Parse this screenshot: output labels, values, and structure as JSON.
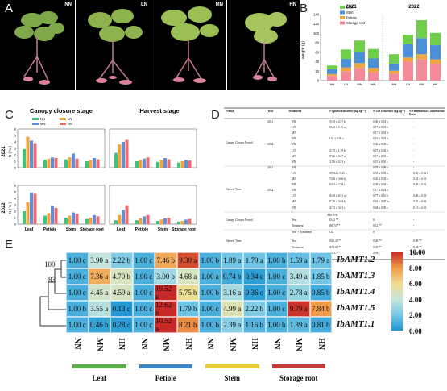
{
  "panels": {
    "a": "A",
    "b": "B",
    "c": "C",
    "d": "D",
    "e": "E"
  },
  "photos": [
    "NN",
    "LN",
    "MN",
    "HN"
  ],
  "colors": {
    "leaf": "#6fcf4a",
    "stem": "#4b8fd8",
    "petiole": "#f0a640",
    "root": "#f38a9a",
    "nn": "#43c27a",
    "ln": "#f6a23a",
    "mn": "#5c8fe0",
    "hn": "#f06a6a"
  },
  "panelB": {
    "ylabel": "weight (g)",
    "years": [
      "2021",
      "2022"
    ],
    "legend": [
      "Leaf",
      "Stem",
      "Petiole",
      "Storage root"
    ],
    "yticks": [
      "0",
      "20",
      "40",
      "60",
      "80",
      "100",
      "120",
      "140"
    ],
    "xticks": [
      "NN",
      "LN",
      "MN",
      "HN"
    ]
  },
  "chart_data": {
    "type": "bar",
    "title": "",
    "xlabel": "",
    "ylabel": "weight (g)",
    "ylim": [
      0,
      140
    ],
    "categories": [
      "2021 NN",
      "2021 LN",
      "2021 MN",
      "2021 HN",
      "2022 NN",
      "2022 LN",
      "2022 MN",
      "2022 HN"
    ],
    "series": [
      {
        "name": "Storage root",
        "values": [
          10,
          20,
          27,
          18,
          15,
          40,
          45,
          35
        ]
      },
      {
        "name": "Petiole",
        "values": [
          4,
          8,
          10,
          9,
          6,
          9,
          11,
          10
        ]
      },
      {
        "name": "Stem",
        "values": [
          10,
          18,
          24,
          20,
          15,
          28,
          34,
          30
        ]
      },
      {
        "name": "Leaf",
        "values": [
          8,
          20,
          24,
          20,
          20,
          20,
          38,
          26
        ]
      }
    ]
  },
  "panelC": {
    "titles": [
      "Canopy closure stage",
      "Harvest stage"
    ],
    "legend": [
      "NN",
      "LN",
      "MN",
      "HN"
    ],
    "rows": [
      "2021",
      "2022"
    ],
    "ylabel": "N ( % )",
    "yticks": [
      "0",
      "1",
      "2",
      "3",
      "4",
      "5",
      "6"
    ],
    "xticks": [
      "Leaf",
      "Petiole",
      "Stem",
      "Storage root"
    ]
  },
  "panelD": {
    "headers": [
      "Period",
      "Year",
      "Treatment",
      "N Uptake Efficiency (kg kg⁻¹)",
      "N Use Efficiency (kg kg⁻¹)",
      "N Fertilization Contribution Rates"
    ],
    "period1": "Canopy Closure Period",
    "period2": "Harvest Time",
    "rows": [
      [
        "2021",
        "NN",
        "19.49 ± 0.27 b",
        "0.30 ± 0.01 a",
        "-"
      ],
      [
        "",
        "LN",
        "29.42 ± 0.16 a",
        "0.17 ± 0.01 b",
        "-"
      ],
      [
        "",
        "MN",
        "",
        "0.17 ± 0.01 b",
        ""
      ],
      [
        "",
        "HN",
        "9.54 ± 0.09 c",
        "0.16 ± 0.01 b",
        "-"
      ],
      [
        "2022",
        "NN",
        "",
        "0.50 ± 0.03 a",
        "-"
      ],
      [
        "",
        "LN",
        "22.72 ± 1.19 b",
        "0.27 ± 0.02 b",
        "-"
      ],
      [
        "",
        "MN",
        "27.66 ± 0.67 a",
        "0.17 ± 0.01 c",
        "-"
      ],
      [
        "",
        "HN",
        "11.86 ± 0.23 c",
        "0.15 ± 0.01 c",
        "-"
      ],
      [
        "2021",
        "NN",
        "",
        "0.78 ± 0.09 a",
        "-"
      ],
      [
        "",
        "LN",
        "107.04 ± 8.45 a",
        "0.55 ± 0.03 b",
        "0.35 ± 0.02 b"
      ],
      [
        "",
        "MN",
        "73.06 ± 3.66 b",
        "0.45 ± 0.02 c",
        "0.42 ± 0.01"
      ],
      [
        "",
        "HN",
        "44.01 ± 2.58 c",
        "0.39 ± 0.02 c",
        "0.28 ± 0.01"
      ],
      [
        "2022",
        "NN",
        "",
        "1.17 ± 0.22 a",
        "-"
      ],
      [
        "",
        "LN",
        "68.49 ± 8.43 a",
        "0.77 ± 0.10 b",
        "0.26 ± 0.03"
      ],
      [
        "",
        "MN",
        "47.29 ± 3.04 b",
        "0.62 ± 0.07 bc",
        "0.33 ± 0.02"
      ],
      [
        "",
        "HN",
        "32.72 ± 3.01 c",
        "0.44 ± 0.05 c",
        "0.15 ± 0.01"
      ]
    ],
    "anova_title": "ANOVA",
    "anova": [
      [
        "Canopy Closure Period",
        "Year",
        "30.42 **",
        "0",
        "-"
      ],
      [
        "",
        "Treatment",
        "366.74 **",
        "0.12 **",
        "-"
      ],
      [
        "",
        "Year × Treatment",
        "0.45",
        "0",
        "-"
      ],
      [
        "Harvest Time",
        "Year",
        "2926.28 **",
        "0.26 **",
        "0.09 **"
      ],
      [
        "",
        "Treatment",
        "5672.63 **",
        "0.35 **",
        "0.04 **"
      ],
      [
        "",
        "Year × Treatment",
        "286.17 **",
        "0.03",
        "0.08 **"
      ]
    ]
  },
  "panelE": {
    "tree_labels": [
      "100",
      "83"
    ],
    "genes": [
      "IbAMT1.2",
      "IbAMT1.3",
      "IbAMT1.4",
      "IbAMT1.5",
      "IbAMT1.1"
    ],
    "cols": [
      "NN",
      "MN",
      "HN",
      "NN",
      "MN",
      "HN",
      "NN",
      "MN",
      "HN",
      "NN",
      "MN",
      "HN"
    ],
    "tissues": [
      "Leaf",
      "Petiole",
      "Stem",
      "Storage root"
    ],
    "tissue_colors": [
      "#5cae4a",
      "#3a86c4",
      "#e8cf3a",
      "#c23b3b"
    ],
    "scale_ticks": [
      "10.00",
      "8.00",
      "6.00",
      "4.00",
      "2.00",
      "0.00"
    ],
    "values": [
      [
        "1.00 c",
        "3.90 a",
        "2.22 b",
        "1.00 c",
        "7.46 b",
        "9.30 a",
        "1.00 b",
        "1.89 a",
        "1.79 a",
        "1.00 b",
        "1.59 a",
        "1.79 a"
      ],
      [
        "1.00 c",
        "7.36 a",
        "4.70 b",
        "1.00 c",
        "3.00 b",
        "4.68 a",
        "1.00 a",
        "0.74 b",
        "0.34 c",
        "1.00 c",
        "3.49 a",
        "1.85 b"
      ],
      [
        "1.00 c",
        "4.45 a",
        "4.59 a",
        "1.00 c",
        "19.52 a",
        "5.75 b",
        "1.00 b",
        "3.16 a",
        "0.36 c",
        "1.00 c",
        "2.78 a",
        "0.85 b"
      ],
      [
        "1.00 b",
        "3.55 a",
        "0.13 c",
        "1.00 c",
        "12.62 a",
        "1.79 b",
        "1.00 c",
        "4.99 a",
        "2.22 b",
        "1.00 c",
        "9.79 a",
        "7.84 b"
      ],
      [
        "1.00 c",
        "0.46 b",
        "0.28 c",
        "1.00 c",
        "10.52 a",
        "8.21 b",
        "1.00 b",
        "2.39 a",
        "1.16 b",
        "1.00 b",
        "1.39 a",
        "0.81 b"
      ]
    ],
    "numeric": [
      [
        1.0,
        3.9,
        2.22,
        1.0,
        7.46,
        9.3,
        1.0,
        1.89,
        1.79,
        1.0,
        1.59,
        1.79
      ],
      [
        1.0,
        7.36,
        4.7,
        1.0,
        3.0,
        4.68,
        1.0,
        0.74,
        0.34,
        1.0,
        3.49,
        1.85
      ],
      [
        1.0,
        4.45,
        4.59,
        1.0,
        19.52,
        5.75,
        1.0,
        3.16,
        0.36,
        1.0,
        2.78,
        0.85
      ],
      [
        1.0,
        3.55,
        0.13,
        1.0,
        12.62,
        1.79,
        1.0,
        4.99,
        2.22,
        1.0,
        9.79,
        7.84
      ],
      [
        1.0,
        0.46,
        0.28,
        1.0,
        10.52,
        8.21,
        1.0,
        2.39,
        1.16,
        1.0,
        1.39,
        0.81
      ]
    ]
  }
}
